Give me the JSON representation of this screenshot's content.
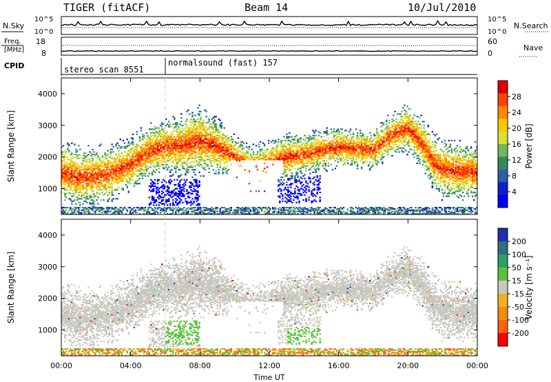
{
  "header": {
    "station": "TIGER (fitACF)",
    "beam": "Beam 14",
    "date": "10/Jul/2010"
  },
  "panels": {
    "nsky": {
      "label": "N.Sky",
      "yticks_left": [
        "10^5",
        "10^0"
      ],
      "yticks_right": [
        "10^5",
        "10^0"
      ],
      "right_label": "N.Search"
    },
    "freq": {
      "label_line1": "Freq.",
      "label_line2": "[MHz]",
      "yticks_left": [
        "18",
        "8"
      ],
      "yticks_right": [
        "60",
        "0"
      ],
      "right_label": "Nave"
    },
    "cpid": {
      "label": "CPID",
      "modes": [
        {
          "name": "stereo_scan 8551",
          "start_hour": 0
        },
        {
          "name": "normalsound (fast) 157",
          "start_hour": 6
        }
      ]
    }
  },
  "chart_data": [
    {
      "type": "heatmap",
      "name": "power",
      "xlabel": "",
      "ylabel": "Slant Range [km]",
      "xlim": [
        0,
        24
      ],
      "ylim": [
        180,
        4500
      ],
      "yticks": [
        1000,
        2000,
        3000,
        4000
      ],
      "colorbar": {
        "label": "Power [dB]",
        "ticks": [
          "28",
          "24",
          "20",
          "16",
          "12",
          "8",
          "4"
        ],
        "colors": [
          "#e00000",
          "#ff4400",
          "#ff8800",
          "#f5c800",
          "#d8e030",
          "#70b860",
          "#2f8a5a",
          "#2a5ea8",
          "#1020c8",
          "#0000ff"
        ]
      },
      "features": [
        {
          "start": 0,
          "end": 6,
          "center_range": 1500,
          "power": 28
        },
        {
          "start": 6,
          "end": 10,
          "center_range": 2200,
          "power": 20
        },
        {
          "start": 10,
          "end": 19,
          "center_range": 2100,
          "power": 22
        },
        {
          "start": 19,
          "end": 21,
          "center_range": 2800,
          "power": 24
        },
        {
          "start": 21,
          "end": 24,
          "center_range": 1500,
          "power": 26
        }
      ]
    },
    {
      "type": "heatmap",
      "name": "velocity",
      "xlabel": "Time UT",
      "ylabel": "Slant Range [km]",
      "xlim": [
        0,
        24
      ],
      "ylim": [
        180,
        4500
      ],
      "xticks": [
        "00:00",
        "04:00",
        "08:00",
        "12:00",
        "16:00",
        "20:00",
        "00:00"
      ],
      "yticks": [
        1000,
        2000,
        3000,
        4000
      ],
      "colorbar": {
        "label": "Velocity [m s⁻¹]",
        "ticks": [
          "200",
          "100",
          "50",
          "15",
          "-15",
          "-50",
          "-100",
          "-200"
        ],
        "colors": [
          "#1f2fb0",
          "#2e6e80",
          "#2ea06a",
          "#5cc23a",
          "#c8c8c0",
          "#f0b020",
          "#f08c10",
          "#ff6010",
          "#ff0000"
        ]
      }
    }
  ]
}
